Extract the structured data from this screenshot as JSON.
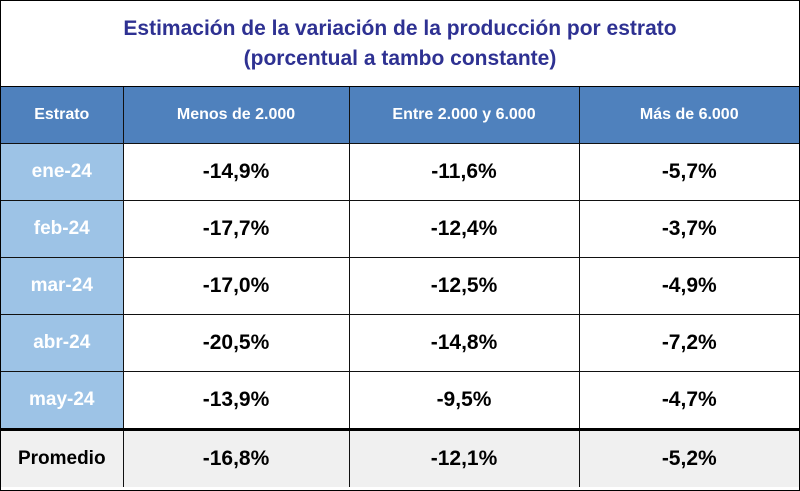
{
  "chart_data": {
    "type": "table",
    "title": "Estimación de la variación de la producción por estrato",
    "subtitle": "(porcentual a tambo constante)",
    "columns": [
      "Estrato",
      "Menos de 2.000",
      "Entre 2.000 y 6.000",
      "Más de 6.000"
    ],
    "rows": [
      {
        "label": "ene-24",
        "values": [
          "-14,9%",
          "-11,6%",
          "-5,7%"
        ]
      },
      {
        "label": "feb-24",
        "values": [
          "-17,7%",
          "-12,4%",
          "-3,7%"
        ]
      },
      {
        "label": "mar-24",
        "values": [
          "-17,0%",
          "-12,5%",
          "-4,9%"
        ]
      },
      {
        "label": "abr-24",
        "values": [
          "-20,5%",
          "-14,8%",
          "-7,2%"
        ]
      },
      {
        "label": "may-24",
        "values": [
          "-13,9%",
          "-9,5%",
          "-4,7%"
        ]
      }
    ],
    "average": {
      "label": "Promedio",
      "values": [
        "-16,8%",
        "-12,1%",
        "-5,2%"
      ]
    },
    "colors": {
      "title": "#2e3192",
      "header_bg": "#4f81bd",
      "label_bg": "#9dc3e6",
      "average_bg": "#f0f0f0"
    }
  }
}
